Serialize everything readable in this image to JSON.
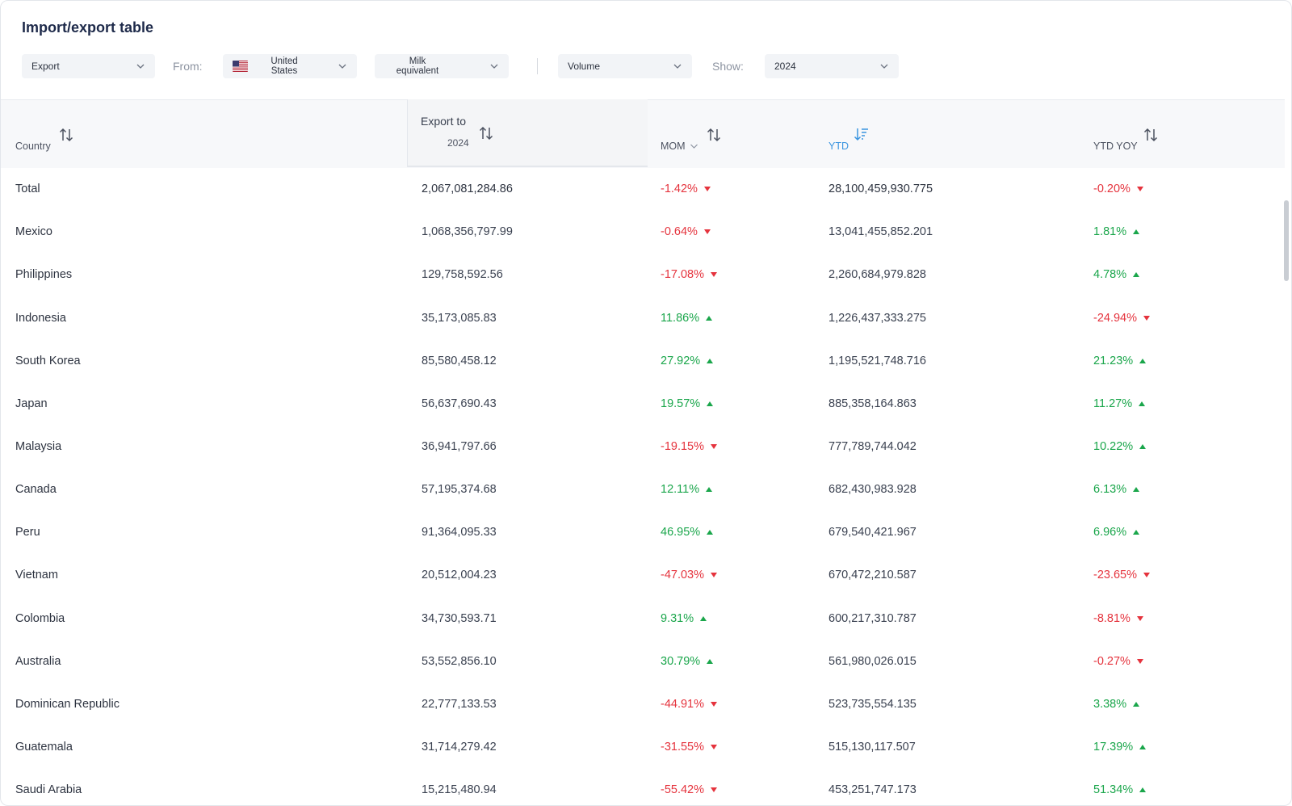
{
  "title": "Import/export table",
  "filters": {
    "direction": "Export",
    "from_label": "From:",
    "country_line1": "United",
    "country_line2": "States",
    "product_line1": "Milk",
    "product_line2": "equivalent",
    "measure": "Volume",
    "show_label": "Show:",
    "year": "2024"
  },
  "columns": {
    "country": "Country",
    "export_to": "Export to",
    "export_year": "2024",
    "mom": "MOM",
    "ytd": "YTD",
    "ytd_yoy": "YTD YOY"
  },
  "colors": {
    "negative": "#e5333d",
    "positive": "#1aa64b",
    "active_sort": "#3b95e0"
  },
  "rows": [
    {
      "country": "Total",
      "export": "2,067,081,284.86",
      "mom": "-1.42%",
      "mom_dir": "down",
      "ytd": "28,100,459,930.775",
      "yoy": "-0.20%",
      "yoy_dir": "down"
    },
    {
      "country": "Mexico",
      "export": "1,068,356,797.99",
      "mom": "-0.64%",
      "mom_dir": "down",
      "ytd": "13,041,455,852.201",
      "yoy": "1.81%",
      "yoy_dir": "up"
    },
    {
      "country": "Philippines",
      "export": "129,758,592.56",
      "mom": "-17.08%",
      "mom_dir": "down",
      "ytd": "2,260,684,979.828",
      "yoy": "4.78%",
      "yoy_dir": "up"
    },
    {
      "country": "Indonesia",
      "export": "35,173,085.83",
      "mom": "11.86%",
      "mom_dir": "up",
      "ytd": "1,226,437,333.275",
      "yoy": "-24.94%",
      "yoy_dir": "down"
    },
    {
      "country": "South Korea",
      "export": "85,580,458.12",
      "mom": "27.92%",
      "mom_dir": "up",
      "ytd": "1,195,521,748.716",
      "yoy": "21.23%",
      "yoy_dir": "up"
    },
    {
      "country": "Japan",
      "export": "56,637,690.43",
      "mom": "19.57%",
      "mom_dir": "up",
      "ytd": "885,358,164.863",
      "yoy": "11.27%",
      "yoy_dir": "up"
    },
    {
      "country": "Malaysia",
      "export": "36,941,797.66",
      "mom": "-19.15%",
      "mom_dir": "down",
      "ytd": "777,789,744.042",
      "yoy": "10.22%",
      "yoy_dir": "up"
    },
    {
      "country": "Canada",
      "export": "57,195,374.68",
      "mom": "12.11%",
      "mom_dir": "up",
      "ytd": "682,430,983.928",
      "yoy": "6.13%",
      "yoy_dir": "up"
    },
    {
      "country": "Peru",
      "export": "91,364,095.33",
      "mom": "46.95%",
      "mom_dir": "up",
      "ytd": "679,540,421.967",
      "yoy": "6.96%",
      "yoy_dir": "up"
    },
    {
      "country": "Vietnam",
      "export": "20,512,004.23",
      "mom": "-47.03%",
      "mom_dir": "down",
      "ytd": "670,472,210.587",
      "yoy": "-23.65%",
      "yoy_dir": "down"
    },
    {
      "country": "Colombia",
      "export": "34,730,593.71",
      "mom": "9.31%",
      "mom_dir": "up",
      "ytd": "600,217,310.787",
      "yoy": "-8.81%",
      "yoy_dir": "down"
    },
    {
      "country": "Australia",
      "export": "53,552,856.10",
      "mom": "30.79%",
      "mom_dir": "up",
      "ytd": "561,980,026.015",
      "yoy": "-0.27%",
      "yoy_dir": "down"
    },
    {
      "country": "Dominican Republic",
      "export": "22,777,133.53",
      "mom": "-44.91%",
      "mom_dir": "down",
      "ytd": "523,735,554.135",
      "yoy": "3.38%",
      "yoy_dir": "up"
    },
    {
      "country": "Guatemala",
      "export": "31,714,279.42",
      "mom": "-31.55%",
      "mom_dir": "down",
      "ytd": "515,130,117.507",
      "yoy": "17.39%",
      "yoy_dir": "up"
    },
    {
      "country": "Saudi Arabia",
      "export": "15,215,480.94",
      "mom": "-55.42%",
      "mom_dir": "down",
      "ytd": "453,251,747.173",
      "yoy": "51.34%",
      "yoy_dir": "up"
    }
  ]
}
